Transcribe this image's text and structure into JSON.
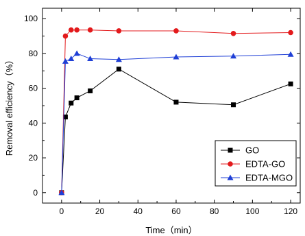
{
  "chart_data": {
    "type": "line",
    "xlabel": "Time（min）",
    "ylabel": "Removal efficiency（%）",
    "xlim": [
      -10,
      125
    ],
    "ylim": [
      -6,
      106
    ],
    "xticks": [
      0,
      20,
      40,
      60,
      80,
      100,
      120
    ],
    "yticks": [
      0,
      20,
      40,
      60,
      80,
      100
    ],
    "grid": false,
    "legend_position": "bottom-right",
    "series": [
      {
        "name": "GO",
        "color": "#000000",
        "marker": "square",
        "x": [
          0,
          2,
          5,
          8,
          15,
          30,
          60,
          90,
          120
        ],
        "y": [
          0,
          43.5,
          51.5,
          54.5,
          58.5,
          71.0,
          52.0,
          50.5,
          62.5
        ]
      },
      {
        "name": "EDTA-GO",
        "color": "#e31a1c",
        "marker": "circle",
        "x": [
          0,
          2,
          5,
          8,
          15,
          30,
          60,
          90,
          120
        ],
        "y": [
          0,
          90.0,
          93.5,
          93.5,
          93.5,
          93.0,
          93.0,
          91.5,
          92.0
        ]
      },
      {
        "name": "EDTA-MGO",
        "color": "#1f3fd6",
        "marker": "triangle",
        "x": [
          0,
          2,
          5,
          8,
          15,
          30,
          60,
          90,
          120
        ],
        "y": [
          0,
          75.5,
          77.0,
          80.0,
          77.0,
          76.5,
          78.0,
          78.5,
          79.5
        ]
      }
    ]
  }
}
